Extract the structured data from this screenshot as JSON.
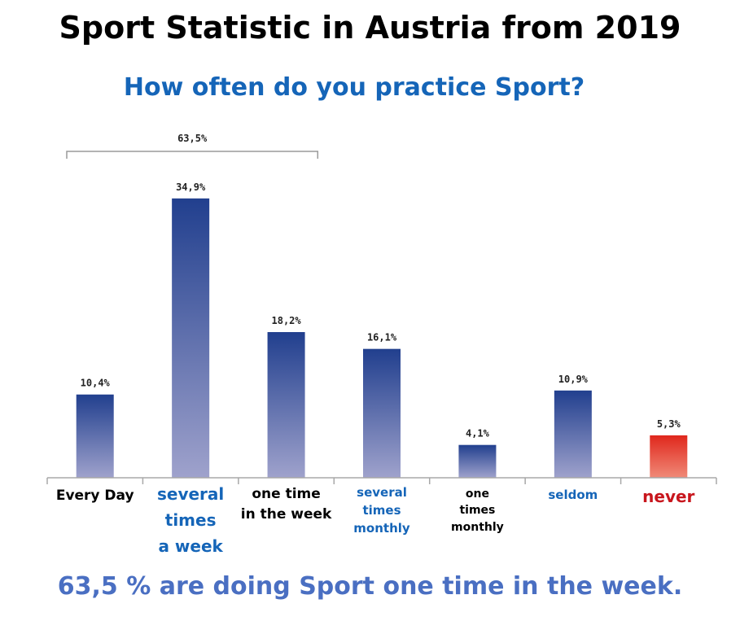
{
  "title": "Sport Statistic in Austria from 2019",
  "subtitle": "How often do you practice Sport?",
  "footer": "63,5 % are doing Sport one time in the week.",
  "colors": {
    "bar_top": "#213f8e",
    "bar_bottom": "#9fa2cc",
    "never_top": "#e0271c",
    "never_bottom": "#f08a78",
    "label_blue": "#1565b8",
    "label_black": "#000000",
    "label_red": "#c8161d"
  },
  "chart_data": {
    "type": "bar",
    "title": "How often do you practice Sport?",
    "xlabel": "",
    "ylabel": "",
    "ylim": [
      0,
      40
    ],
    "grid": false,
    "categories": [
      "Every Day",
      "several times a week",
      "one time in the week",
      "several times monthly",
      "one times monthly",
      "seldom",
      "never"
    ],
    "values": [
      10.4,
      34.9,
      18.2,
      16.1,
      4.1,
      10.9,
      5.3
    ],
    "value_labels": [
      "10,4%",
      "34,9%",
      "18,2%",
      "16,1%",
      "4,1%",
      "10,9%",
      "5,3%"
    ],
    "bracket": {
      "from_category": 0,
      "to_category": 2,
      "label": "63,5%"
    }
  },
  "category_labels": [
    {
      "lines": [
        "Every Day"
      ],
      "color": "label_black"
    },
    {
      "lines": [
        "several",
        "times",
        "a week"
      ],
      "color": "label_blue"
    },
    {
      "lines": [
        "one time",
        "in the week"
      ],
      "color": "label_black"
    },
    {
      "lines": [
        "several",
        "times",
        "monthly"
      ],
      "color": "label_blue"
    },
    {
      "lines": [
        "one",
        "times",
        "monthly"
      ],
      "color": "label_black"
    },
    {
      "lines": [
        "seldom"
      ],
      "color": "label_blue"
    },
    {
      "lines": [
        "never"
      ],
      "color": "label_red"
    }
  ]
}
